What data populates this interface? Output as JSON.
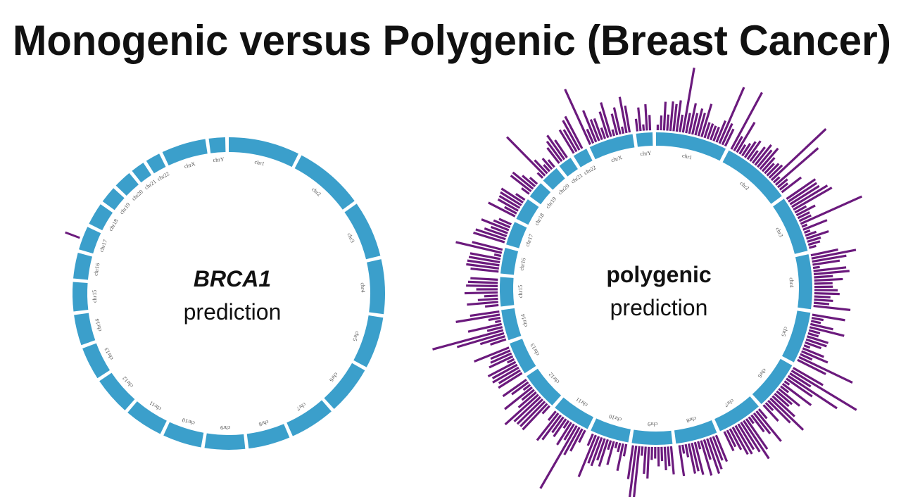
{
  "title": "Monogenic versus Polygenic (Breast Cancer)",
  "left": {
    "label": "BRCA1",
    "caption": "prediction",
    "segments": [
      "chr1",
      "chr2",
      "chr3",
      "chr4",
      "chr5",
      "chr6",
      "chr7",
      "chr8",
      "chr9",
      "chr10",
      "chr11",
      "chr12",
      "chr13",
      "chr14",
      "chr15",
      "chr16",
      "chr17",
      "chr18",
      "chr19",
      "chr20",
      "chr21",
      "chr22",
      "chrX",
      "chrY"
    ]
  },
  "right": {
    "label": "polygenic",
    "caption": "prediction",
    "segments": [
      "chr1",
      "chr2",
      "chr3",
      "chr4",
      "chr5",
      "chr6",
      "chr7",
      "chr8",
      "chr9",
      "chr10",
      "chr11",
      "chr12",
      "chr13",
      "chr14",
      "chr15",
      "chr16",
      "chr17",
      "chr18",
      "chr19",
      "chr20",
      "chr21",
      "chr22",
      "chrX",
      "chrY"
    ]
  }
}
